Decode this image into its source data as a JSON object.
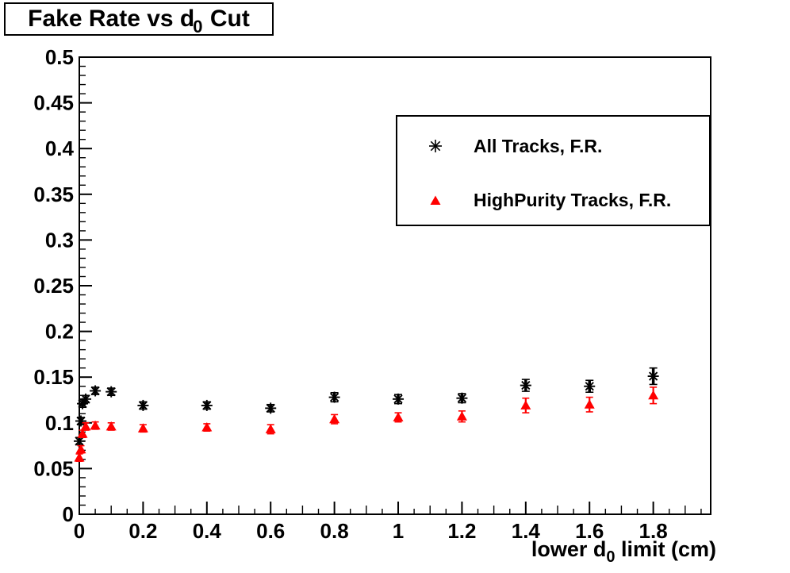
{
  "title": {
    "prefix": "Fake Rate vs d",
    "sub": "0",
    "suffix": " Cut"
  },
  "legend": {
    "items": [
      {
        "label": "All Tracks, F.R.",
        "marker": "asterisk-icon",
        "color": "#000000"
      },
      {
        "label": "HighPurity Tracks, F.R.",
        "marker": "triangle-icon",
        "color": "#ff0000"
      }
    ]
  },
  "chart_data": {
    "type": "scatter",
    "title": "Fake Rate vs d0 Cut",
    "xlabel": "lower d0 limit (cm)",
    "xlabel_parts": {
      "prefix": "lower d",
      "sub": "0",
      "suffix": " limit (cm)"
    },
    "ylabel": "",
    "xlim": [
      0,
      1.98
    ],
    "ylim": [
      0,
      0.5
    ],
    "grid": false,
    "legend_position": "top-right",
    "x_ticks": {
      "minor_step": 0.05,
      "medium_step": 0.1,
      "major_step": 0.2,
      "values": [
        0,
        0.2,
        0.4,
        0.6,
        0.8,
        1,
        1.2,
        1.4,
        1.6,
        1.8
      ],
      "labels": [
        "0",
        "0.2",
        "0.4",
        "0.6",
        "0.8",
        "1",
        "1.2",
        "1.4",
        "1.6",
        "1.8"
      ]
    },
    "y_ticks": {
      "minor_step": 0.01,
      "major_step": 0.05,
      "values": [
        0,
        0.05,
        0.1,
        0.15,
        0.2,
        0.25,
        0.3,
        0.35,
        0.4,
        0.45,
        0.5
      ],
      "labels": [
        "0",
        "0.05",
        "0.1",
        "0.15",
        "0.2",
        "0.25",
        "0.3",
        "0.35",
        "0.4",
        "0.45",
        "0.5"
      ]
    },
    "series": [
      {
        "name": "All Tracks, F.R.",
        "marker": "asterisk",
        "color": "#000000",
        "x": [
          0,
          0.005,
          0.01,
          0.02,
          0.05,
          0.1,
          0.2,
          0.4,
          0.6,
          0.8,
          1.0,
          1.2,
          1.4,
          1.6,
          1.8
        ],
        "y": [
          0.08,
          0.102,
          0.121,
          0.126,
          0.135,
          0.134,
          0.119,
          0.119,
          0.116,
          0.128,
          0.126,
          0.127,
          0.141,
          0.14,
          0.151
        ],
        "yerr": [
          0.004,
          0.004,
          0.004,
          0.004,
          0.004,
          0.004,
          0.004,
          0.004,
          0.004,
          0.005,
          0.005,
          0.005,
          0.0065,
          0.0065,
          0.009
        ]
      },
      {
        "name": "HighPurity Tracks, F.R.",
        "marker": "triangle",
        "color": "#ff0000",
        "x": [
          0,
          0.005,
          0.01,
          0.02,
          0.05,
          0.1,
          0.2,
          0.4,
          0.6,
          0.8,
          1.0,
          1.2,
          1.4,
          1.6,
          1.8
        ],
        "y": [
          0.062,
          0.071,
          0.088,
          0.096,
          0.097,
          0.096,
          0.094,
          0.095,
          0.093,
          0.104,
          0.106,
          0.107,
          0.119,
          0.12,
          0.13
        ],
        "yerr": [
          0.004,
          0.004,
          0.004,
          0.004,
          0.004,
          0.004,
          0.004,
          0.004,
          0.005,
          0.005,
          0.005,
          0.006,
          0.008,
          0.008,
          0.009
        ]
      }
    ]
  }
}
